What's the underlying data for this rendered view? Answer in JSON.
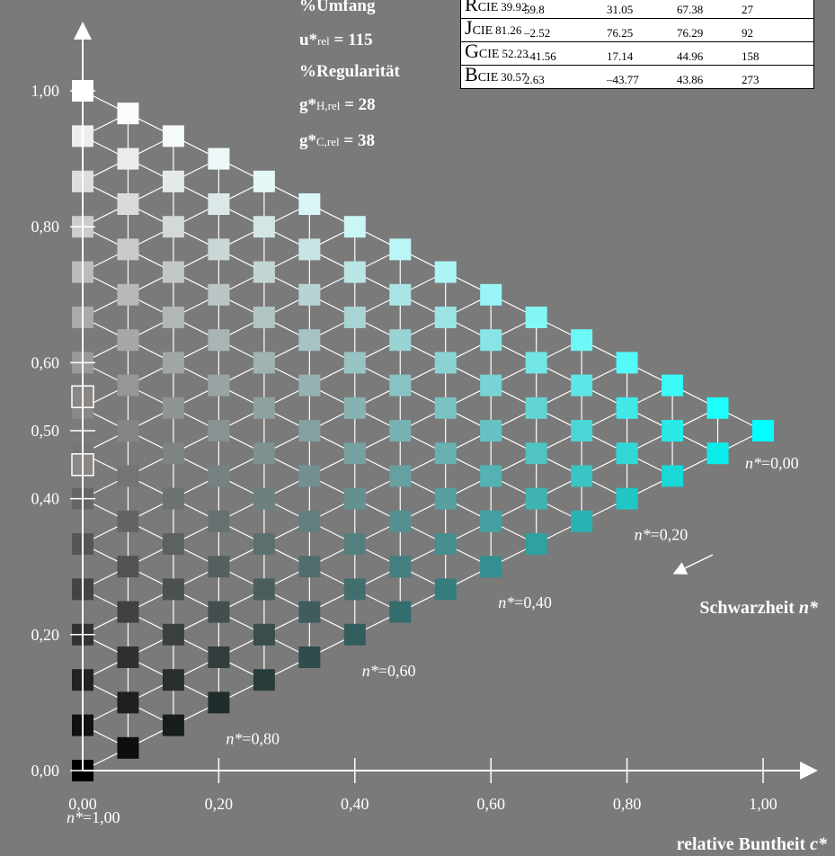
{
  "table": {
    "rows": [
      {
        "label": "R",
        "sub": "CIE",
        "v0": "39.92",
        "v1": "59.8",
        "v2": "31.05",
        "v3": "67.38",
        "v4": "27"
      },
      {
        "label": "J",
        "sub": "CIE",
        "v0": "81.26",
        "v1": "–2.52",
        "v2": "76.25",
        "v3": "76.29",
        "v4": "92"
      },
      {
        "label": "G",
        "sub": "CIE",
        "v0": "52.23",
        "v1": "–41.56",
        "v2": "17.14",
        "v3": "44.96",
        "v4": "158"
      },
      {
        "label": "B",
        "sub": "CIE",
        "v0": "30.57",
        "v1": "2.63",
        "v2": "–43.77",
        "v3": "43.86",
        "v4": "273"
      }
    ]
  },
  "info": {
    "umfang_title": "%Umfang",
    "u_main": "u*",
    "u_sub": "rel",
    "u_value": " = 115",
    "regularitaet_title": "%Regularität",
    "gh_main": "g*",
    "gh_sub": "H,rel",
    "gh_value": " = 28",
    "gc_main": "g*",
    "gc_sub": "C,rel",
    "gc_value": " = 38"
  },
  "chart_data": {
    "type": "triangular color grid",
    "xlabel_text": "relative Buntheit ",
    "xlabel_var": "c*",
    "x_ticks": [
      "0,00",
      "0,20",
      "0,40",
      "0,60",
      "0,80",
      "1,00"
    ],
    "y_ticks": [
      "0,00",
      "0,20",
      "0,40",
      "0,50",
      "0,60",
      "0,80",
      "1,00"
    ],
    "xlim": [
      0,
      1
    ],
    "ylim": [
      0,
      1
    ],
    "black_label_text": "Schwarzheit ",
    "black_label_var": "n*",
    "n_labels": [
      {
        "var": "n*",
        "value": "=0,00",
        "n": 0.0
      },
      {
        "var": "n*",
        "value": "=0,20",
        "n": 0.2
      },
      {
        "var": "n*",
        "value": "=0,40",
        "n": 0.4
      },
      {
        "var": "n*",
        "value": "=0,60",
        "n": 0.6
      },
      {
        "var": "n*",
        "value": "=0,80",
        "n": 0.8
      },
      {
        "var": "n*",
        "value": "=1,00",
        "n": 1.0
      }
    ],
    "grid_steps": 15,
    "start_color": "#000000",
    "white_color": "#ffffff",
    "hue_color": "#00ffff",
    "hue_tint": "#d0d8d8",
    "grey_markers_y": [
      0.45,
      0.55
    ]
  }
}
